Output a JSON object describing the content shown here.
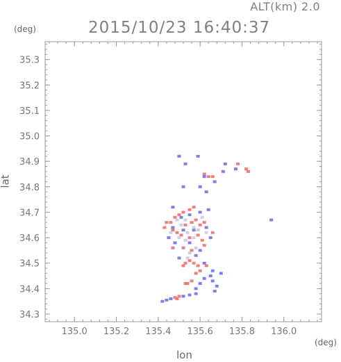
{
  "header": {
    "alt_label": "ALT(km) 2.0",
    "timestamp": "2015/10/23 16:40:37"
  },
  "chart_data": {
    "type": "scatter",
    "title": "2015/10/23 16:40:37",
    "xlabel": "lon",
    "ylabel": "lat",
    "x_unit": "(deg)",
    "y_unit": "(deg)",
    "xlim": [
      134.86,
      136.18
    ],
    "ylim": [
      34.27,
      35.37
    ],
    "x_ticks": [
      135.0,
      135.2,
      135.4,
      135.6,
      135.8,
      136.0
    ],
    "x_tick_labels": [
      "135.0",
      "135.2",
      "135.4",
      "135.6",
      "135.8",
      "136.0"
    ],
    "y_ticks": [
      34.3,
      34.4,
      34.5,
      34.6,
      34.7,
      34.8,
      34.9,
      35.0,
      35.1,
      35.2,
      35.3
    ],
    "y_tick_labels": [
      "34.3",
      "34.4",
      "34.5",
      "34.6",
      "34.7",
      "34.8",
      "34.9",
      "35.0",
      "35.1",
      "35.2",
      "35.3"
    ],
    "grid": false,
    "colors": {
      "positive": "#f07070",
      "negative": "#7070e8",
      "neutral": "#c8c8f0",
      "axis": "#999999"
    },
    "series": [
      {
        "values_key": "positive",
        "points": [
          [
            135.62,
            34.85
          ],
          [
            135.64,
            34.84
          ],
          [
            135.66,
            34.84
          ],
          [
            135.82,
            34.87
          ],
          [
            135.83,
            34.86
          ],
          [
            135.78,
            34.89
          ],
          [
            135.57,
            34.72
          ],
          [
            135.55,
            34.71
          ],
          [
            135.52,
            34.7
          ],
          [
            135.5,
            34.69
          ],
          [
            135.48,
            34.68
          ],
          [
            135.46,
            34.66
          ],
          [
            135.44,
            34.66
          ],
          [
            135.53,
            34.65
          ],
          [
            135.56,
            34.66
          ],
          [
            135.58,
            34.67
          ],
          [
            135.6,
            34.65
          ],
          [
            135.62,
            34.66
          ],
          [
            135.47,
            34.63
          ],
          [
            135.49,
            34.62
          ],
          [
            135.51,
            34.61
          ],
          [
            135.55,
            34.6
          ],
          [
            135.59,
            34.61
          ],
          [
            135.61,
            34.59
          ],
          [
            135.47,
            34.56
          ],
          [
            135.52,
            34.56
          ],
          [
            135.56,
            34.55
          ],
          [
            135.62,
            34.57
          ],
          [
            135.53,
            34.5
          ],
          [
            135.55,
            34.51
          ],
          [
            135.57,
            34.5
          ],
          [
            135.59,
            34.49
          ],
          [
            135.52,
            34.49
          ],
          [
            135.56,
            34.43
          ],
          [
            135.54,
            34.42
          ],
          [
            135.53,
            34.42
          ],
          [
            135.49,
            34.36
          ],
          [
            135.5,
            34.37
          ],
          [
            135.48,
            34.365
          ],
          [
            135.63,
            34.49
          ],
          [
            135.6,
            34.47
          ],
          [
            135.58,
            34.46
          ],
          [
            135.43,
            34.64
          ],
          [
            135.66,
            34.62
          ]
        ]
      },
      {
        "values_key": "negative",
        "points": [
          [
            135.5,
            34.92
          ],
          [
            135.59,
            34.92
          ],
          [
            135.62,
            34.84
          ],
          [
            135.6,
            34.8
          ],
          [
            135.63,
            34.78
          ],
          [
            135.67,
            34.82
          ],
          [
            135.71,
            34.86
          ],
          [
            135.72,
            34.89
          ],
          [
            135.77,
            34.87
          ],
          [
            135.52,
            34.8
          ],
          [
            135.53,
            34.89
          ],
          [
            135.47,
            34.72
          ],
          [
            135.51,
            34.68
          ],
          [
            135.55,
            34.69
          ],
          [
            135.6,
            34.7
          ],
          [
            135.64,
            34.71
          ],
          [
            135.47,
            34.64
          ],
          [
            135.52,
            34.63
          ],
          [
            135.57,
            34.63
          ],
          [
            135.63,
            34.64
          ],
          [
            135.45,
            34.6
          ],
          [
            135.48,
            34.58
          ],
          [
            135.55,
            34.58
          ],
          [
            135.6,
            34.55
          ],
          [
            135.65,
            34.6
          ],
          [
            135.58,
            34.53
          ],
          [
            135.5,
            34.52
          ],
          [
            135.62,
            34.5
          ],
          [
            135.66,
            34.47
          ],
          [
            135.65,
            34.45
          ],
          [
            135.66,
            34.43
          ],
          [
            135.68,
            34.41
          ],
          [
            135.7,
            34.46
          ],
          [
            135.62,
            34.44
          ],
          [
            135.6,
            34.42
          ],
          [
            135.58,
            34.4
          ],
          [
            135.42,
            34.35
          ],
          [
            135.44,
            34.355
          ],
          [
            135.46,
            34.36
          ],
          [
            135.52,
            34.37
          ],
          [
            135.55,
            34.375
          ],
          [
            135.58,
            34.38
          ],
          [
            135.94,
            34.67
          ],
          [
            135.67,
            34.39
          ]
        ]
      },
      {
        "values_key": "neutral",
        "points": [
          [
            135.49,
            34.67
          ],
          [
            135.53,
            34.67
          ],
          [
            135.57,
            34.64
          ],
          [
            135.5,
            34.6
          ],
          [
            135.53,
            34.59
          ],
          [
            135.57,
            34.6
          ],
          [
            135.46,
            34.62
          ],
          [
            135.54,
            34.62
          ],
          [
            135.59,
            34.63
          ],
          [
            135.51,
            34.65
          ],
          [
            135.55,
            34.54
          ],
          [
            135.54,
            34.52
          ],
          [
            135.58,
            34.56
          ],
          [
            135.63,
            34.62
          ],
          [
            135.61,
            34.68
          ]
        ]
      }
    ]
  }
}
